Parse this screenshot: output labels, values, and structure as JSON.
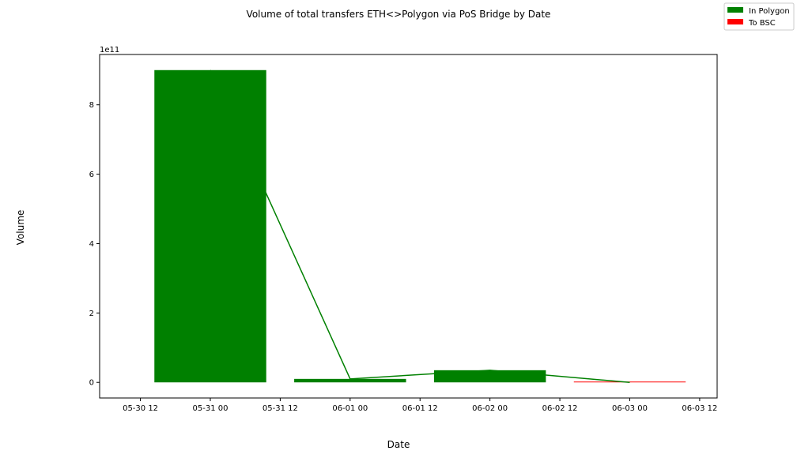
{
  "chart_data": {
    "type": "bar",
    "title": "Volume of total transfers ETH<>Polygon via PoS Bridge by Date",
    "xlabel": "Date",
    "ylabel": "Volume",
    "y_offset_text": "1e11",
    "x_tick_labels": [
      "05-30 12",
      "05-31 00",
      "05-31 12",
      "06-01 00",
      "06-01 12",
      "06-02 00",
      "06-02 12",
      "06-03 00",
      "06-03 12"
    ],
    "y_tick_labels": [
      "0",
      "2",
      "4",
      "6",
      "8"
    ],
    "y_ticks": [
      0,
      200000000000,
      400000000000,
      600000000000,
      800000000000
    ],
    "xlim": [
      "2022-05-30 05:00",
      "2022-06-03 15:00"
    ],
    "ylim": [
      -45000000000,
      945000000000
    ],
    "categories": [
      "2022-05-31",
      "2022-06-01",
      "2022-06-02",
      "2022-06-03"
    ],
    "series": [
      {
        "name": "In Polygon",
        "color": "#008000",
        "values": [
          900000000000,
          10000000000,
          35000000000,
          0
        ]
      },
      {
        "name": "To BSC",
        "color": "#ff0000",
        "values": [
          0,
          0,
          0,
          500000000
        ]
      }
    ],
    "line_series": {
      "color": "#008000",
      "values": [
        900000000000,
        10000000000,
        35000000000,
        0
      ]
    },
    "legend_position": "top-right",
    "grid": false
  }
}
